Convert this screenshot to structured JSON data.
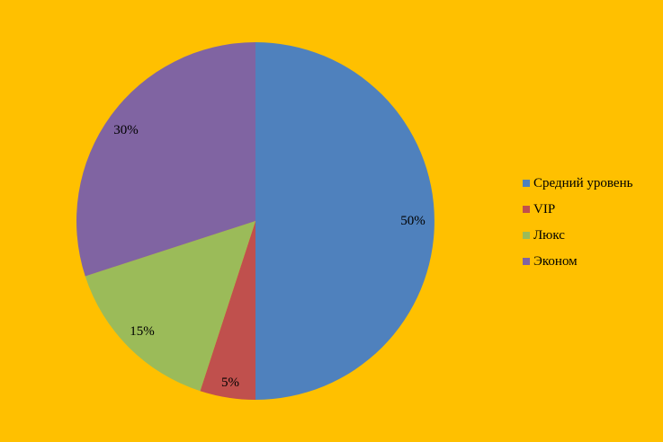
{
  "chart_data": {
    "type": "pie",
    "categories": [
      "Средний уровень",
      "VIP",
      "Люкс",
      "Эконом"
    ],
    "values": [
      50,
      5,
      15,
      30
    ],
    "labels": [
      "50%",
      "5%",
      "15%",
      "30%"
    ],
    "colors": [
      "#4F81BD",
      "#C0504D",
      "#9BBB59",
      "#8064A2"
    ],
    "start": "12 o'clock, clockwise",
    "legend": "right"
  },
  "background_color": "#FFC000"
}
